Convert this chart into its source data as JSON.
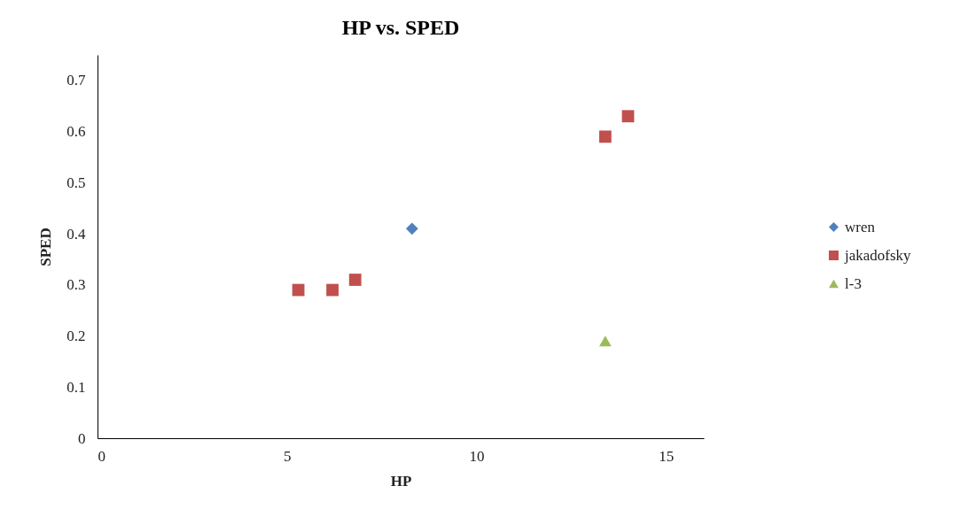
{
  "chart_data": {
    "type": "scatter",
    "title": "HP vs. SPED",
    "xlabel": "HP",
    "ylabel": "SPED",
    "xlim": [
      0,
      16
    ],
    "xticks": [
      0,
      5,
      10,
      15
    ],
    "ylim": [
      0,
      0.75
    ],
    "yticks": [
      0,
      0.1,
      0.2,
      0.3,
      0.4,
      0.5,
      0.6,
      0.7
    ],
    "grid": false,
    "legend": "right",
    "series": [
      {
        "name": "wren",
        "color": "#4f81bd",
        "marker": "diamond",
        "x": [
          8.3
        ],
        "values": [
          0.41
        ]
      },
      {
        "name": "jakadofsky",
        "color": "#c0504d",
        "marker": "square",
        "x": [
          5.3,
          6.2,
          6.8,
          13.4,
          14.0
        ],
        "values": [
          0.29,
          0.29,
          0.31,
          0.59,
          0.63
        ]
      },
      {
        "name": "l-3",
        "color": "#9bbb59",
        "marker": "triangle",
        "x": [
          13.4
        ],
        "values": [
          0.19
        ]
      }
    ]
  }
}
